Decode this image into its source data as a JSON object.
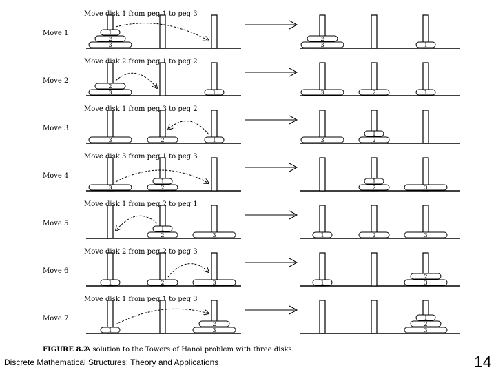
{
  "moves": [
    {
      "label": "Move 1",
      "caption": "Move disk 1 from peg 1 to peg 3",
      "before": [
        [
          3,
          2,
          1
        ],
        [],
        []
      ],
      "after": [
        [
          3,
          2
        ],
        [],
        [
          1
        ]
      ],
      "from": 1,
      "to": 3
    },
    {
      "label": "Move 2",
      "caption": "Move disk 2 from peg 1 to peg 2",
      "before": [
        [
          3,
          2
        ],
        [],
        [
          1
        ]
      ],
      "after": [
        [
          3
        ],
        [
          2
        ],
        [
          1
        ]
      ],
      "from": 1,
      "to": 2
    },
    {
      "label": "Move 3",
      "caption": "Move disk 1 from peg 3 to peg 2",
      "before": [
        [
          3
        ],
        [
          2
        ],
        [
          1
        ]
      ],
      "after": [
        [
          3
        ],
        [
          2,
          1
        ],
        []
      ],
      "from": 3,
      "to": 2
    },
    {
      "label": "Move 4",
      "caption": "Move disk 3 from peg 1 to peg 3",
      "before": [
        [
          3
        ],
        [
          2,
          1
        ],
        []
      ],
      "after": [
        [],
        [
          2,
          1
        ],
        [
          3
        ]
      ],
      "from": 1,
      "to": 3
    },
    {
      "label": "Move 5",
      "caption": "Move disk 1 from peg 2 to peg 1",
      "before": [
        [],
        [
          2,
          1
        ],
        [
          3
        ]
      ],
      "after": [
        [
          1
        ],
        [
          2
        ],
        [
          3
        ]
      ],
      "from": 2,
      "to": 1
    },
    {
      "label": "Move 6",
      "caption": "Move disk 2 from peg 2 to peg 3",
      "before": [
        [
          1
        ],
        [
          2
        ],
        [
          3
        ]
      ],
      "after": [
        [
          1
        ],
        [],
        [
          3,
          2
        ]
      ],
      "from": 2,
      "to": 3
    },
    {
      "label": "Move 7",
      "caption": "Move disk 1 from peg 1 to peg 3",
      "before": [
        [
          1
        ],
        [],
        [
          3,
          2
        ]
      ],
      "after": [
        [],
        [],
        [
          3,
          2,
          1
        ]
      ],
      "from": 1,
      "to": 3
    }
  ],
  "figure_label": "FIGURE 8.2",
  "figure_caption": "A solution to the Towers of Hanoi problem with three disks.",
  "footer": "Discrete Mathematical Structures: Theory and Applications",
  "page_number": "14"
}
